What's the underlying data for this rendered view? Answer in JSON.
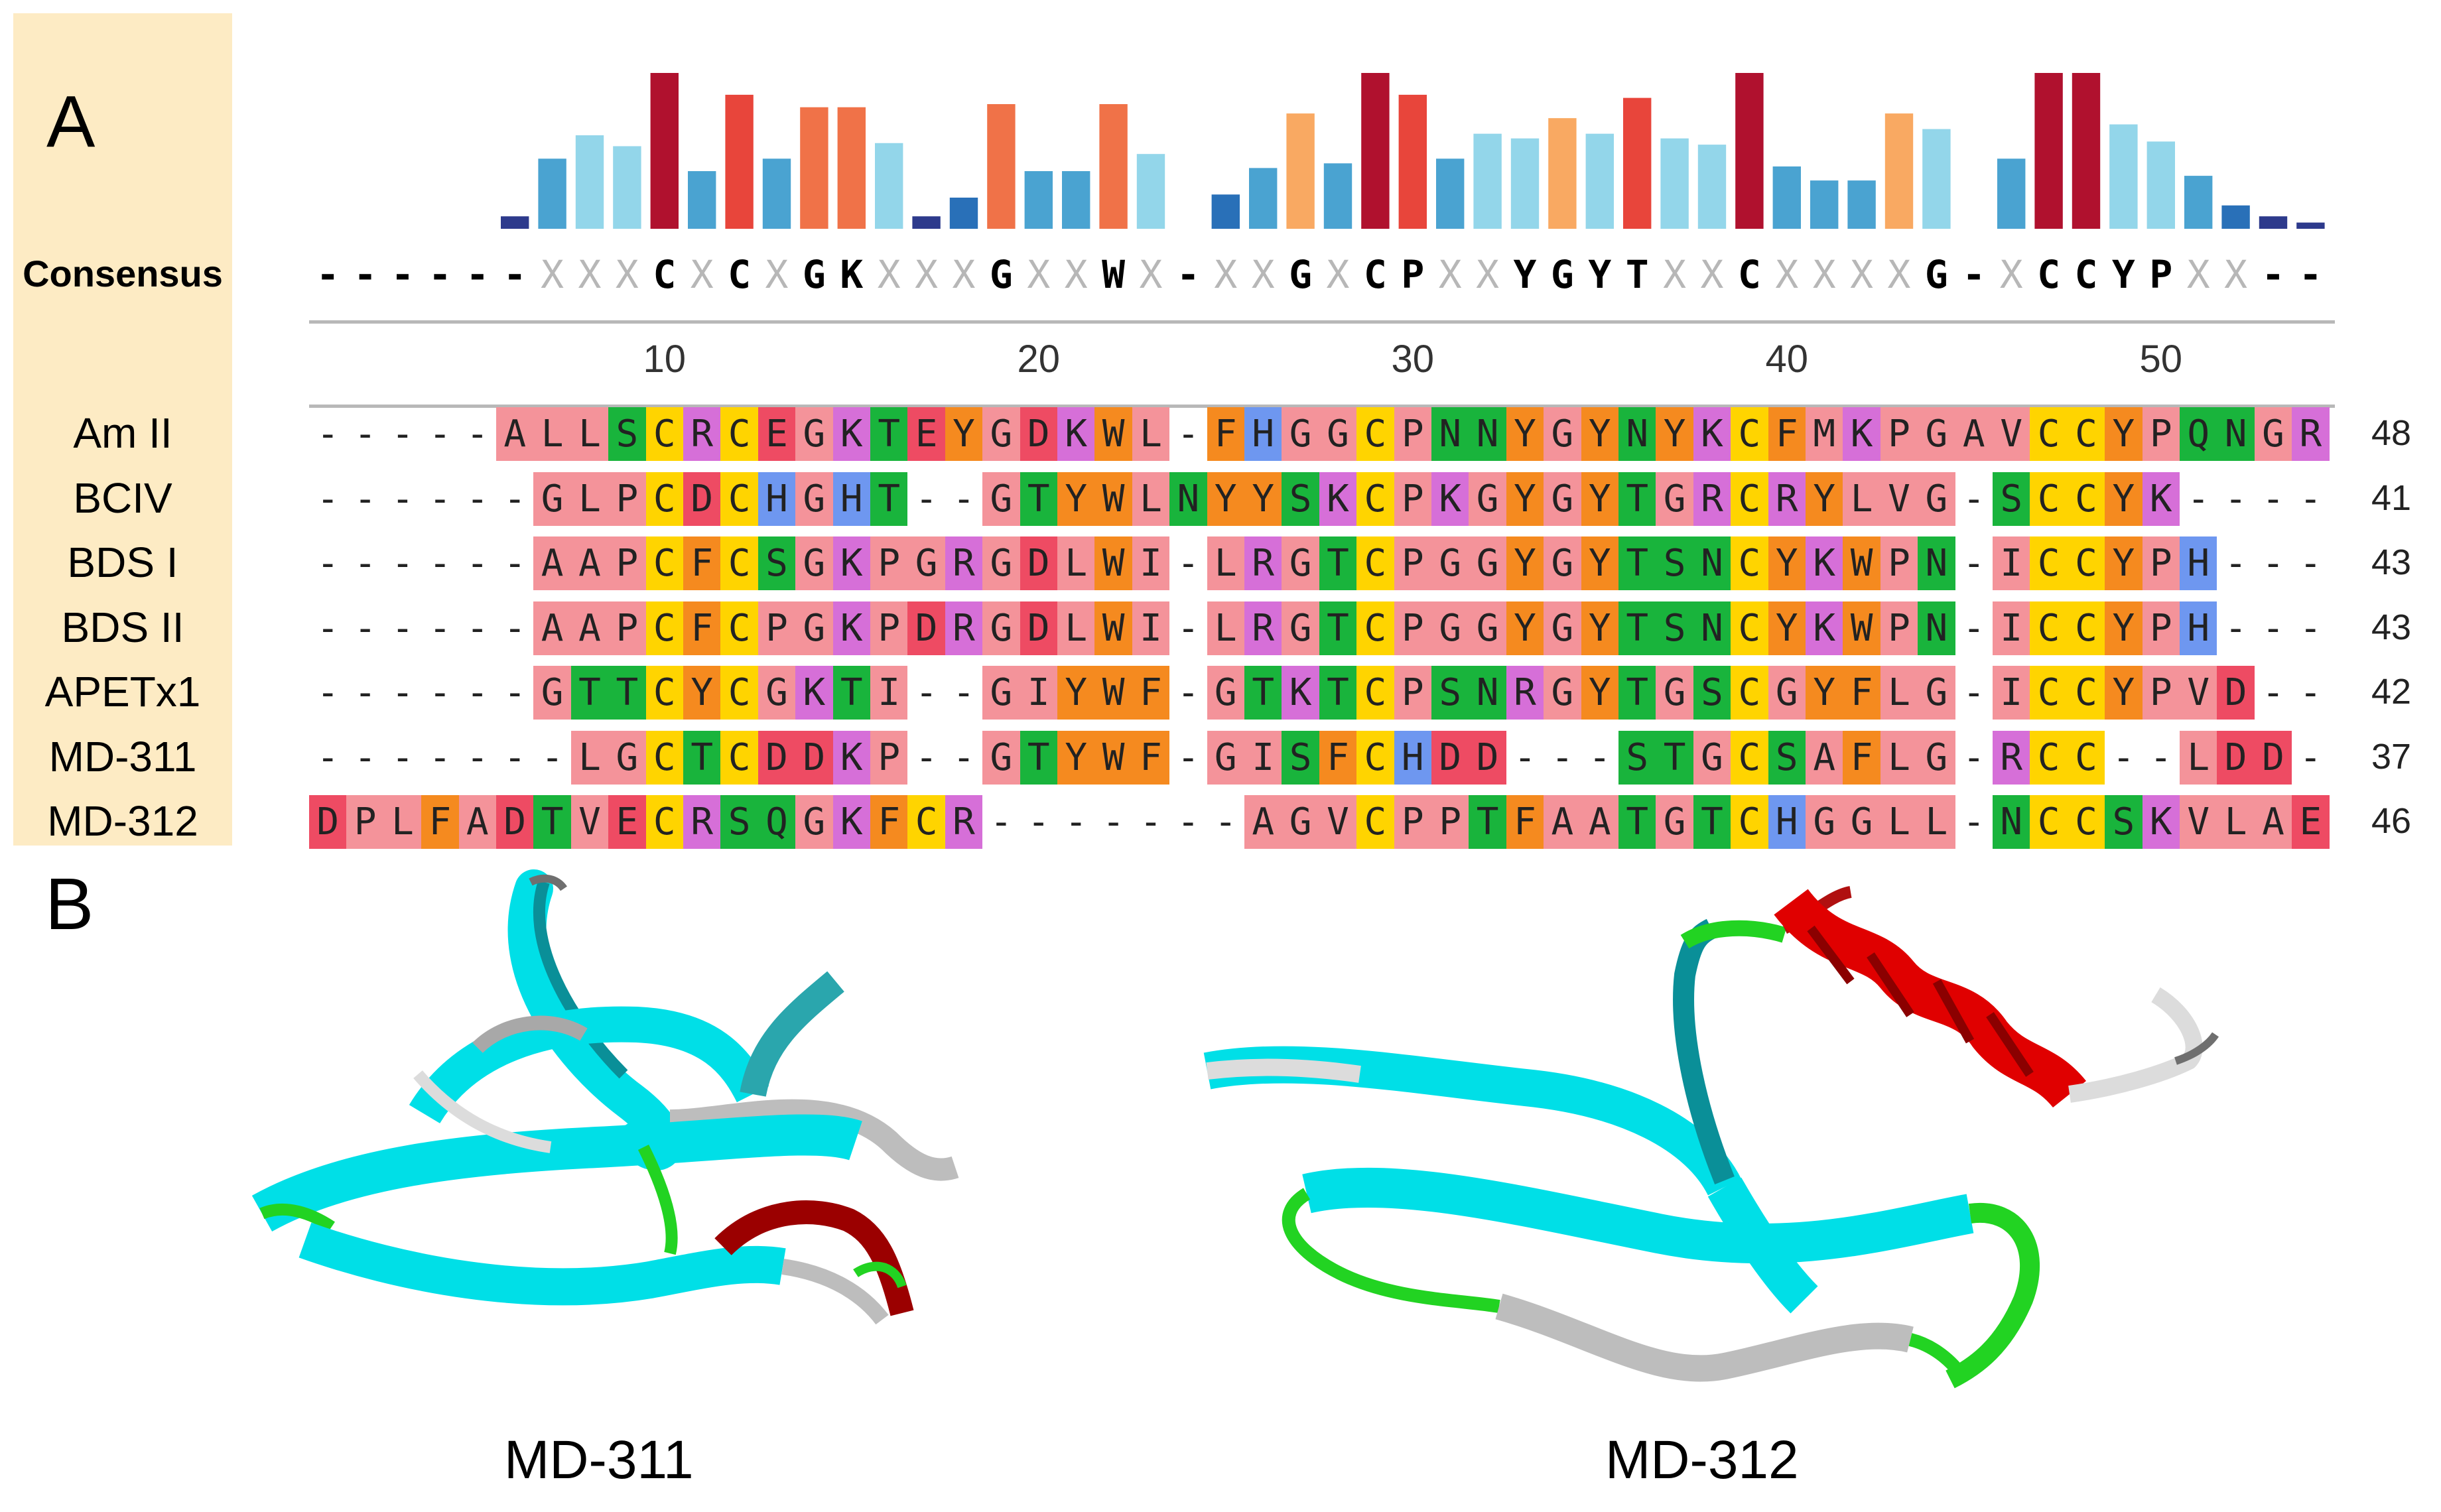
{
  "panels": {
    "a_label": "A",
    "b_label": "B"
  },
  "consensus": {
    "title": "Consensus",
    "sequence": "------XXXCXCXGKXXXGXXWX-XXGXCPXXYGYTXXCXXXXG-XCCYPXX--",
    "bar_levels": [
      0,
      0,
      0,
      0,
      0,
      0.08,
      0.45,
      0.6,
      0.53,
      1.0,
      0.37,
      0.86,
      0.45,
      0.78,
      0.78,
      0.55,
      0.08,
      0.2,
      0.8,
      0.37,
      0.37,
      0.8,
      0.48,
      0,
      0.22,
      0.39,
      0.74,
      0.42,
      1.0,
      0.86,
      0.45,
      0.61,
      0.58,
      0.71,
      0.61,
      0.84,
      0.58,
      0.54,
      1.0,
      0.4,
      0.31,
      0.31,
      0.74,
      0.64,
      0,
      0.45,
      1.0,
      1.0,
      0.67,
      0.56,
      0.34,
      0.15,
      0.08,
      0.04
    ],
    "bar_colors": [
      "#2d3a8c",
      "#2970b8",
      "#4aa3d1",
      "#93d6ea",
      "#f9a962",
      "#f07248",
      "#e8453b",
      "#b0112e"
    ]
  },
  "axis": {
    "ticks": [
      "10",
      "20",
      "30",
      "40",
      "50"
    ],
    "tick_positions": [
      10,
      20,
      30,
      40,
      50
    ]
  },
  "sequences": [
    {
      "name": "Am II",
      "aligned": "-----ALLSCRCEGKTEYGDKWL-FHGGCPNNYGYNYKCFMKPGAVCCYPQNGR",
      "length": "48"
    },
    {
      "name": "BCIV",
      "aligned": "------GLPCDCHGHT--GTYWLNYYSKCPKGYGYTGRCRYLVG-SCCYK----",
      "length": "41"
    },
    {
      "name": "BDS I",
      "aligned": "------AAPCFCSGKPGRGDLWI-LRGTCPGGYGYTSNCYKWPN-ICCYPH---",
      "length": "43"
    },
    {
      "name": "BDS II",
      "aligned": "------AAPCFCPGKPDRGDLWI-LRGTCPGGYGYTSNCYKWPN-ICCYPH---",
      "length": "43"
    },
    {
      "name": "APETx1",
      "aligned": "------GTTCYCGKTI--GIYWF-GTKTCPSNRGYTGSCGYFLG-ICCYPVD--",
      "length": "42"
    },
    {
      "name": "MD-311",
      "aligned": "-------LGCTCDDKP--GTYWF-GISFCHDD---STGCSAFLG-RCC--LDD-",
      "length": "37"
    },
    {
      "name": "MD-312",
      "aligned": "DPLFADTVECRSQGKFCR-------AGVCPPTFAATGTCHGGLL-NCCSKVLAE",
      "length": "46"
    }
  ],
  "residue_colors": {
    "A": "#f4939a",
    "C": "#ffd400",
    "D": "#ee4b63",
    "E": "#ee4b63",
    "F": "#f58a1f",
    "G": "#f4939a",
    "H": "#6e97f0",
    "I": "#f4939a",
    "K": "#d66fd8",
    "L": "#f4939a",
    "M": "#f4939a",
    "N": "#19b43c",
    "P": "#f4939a",
    "Q": "#19b43c",
    "R": "#d66fd8",
    "S": "#19b43c",
    "T": "#19b43c",
    "V": "#f4939a",
    "W": "#f58a1f",
    "Y": "#f58a1f"
  },
  "structures": {
    "left_title": "MD-311",
    "right_title": "MD-312",
    "colors": {
      "strand": "#00e0e8",
      "strand_dark": "#0a8f98",
      "helix": "#e00000",
      "helix_dark": "#8b0000",
      "turn": "#22d322",
      "coil": "#cfcfcf"
    }
  }
}
